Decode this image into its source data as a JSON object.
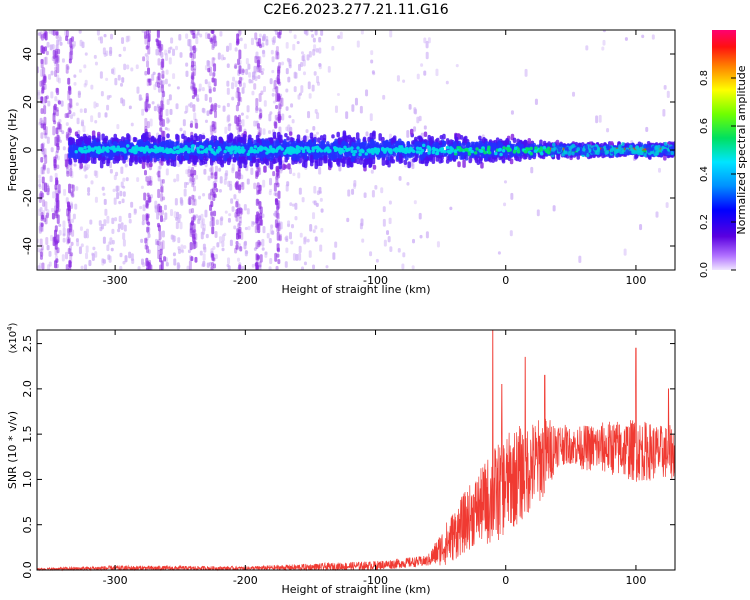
{
  "title": "C2E6.2023.277.21.11.G16",
  "colors": {
    "snr_line": "#f03a32",
    "spectrogram_weak": "#c9a8f5",
    "spectrogram_mid": "#8a2be2",
    "spectrogram_core": "#2233ff",
    "spectrogram_peak": "#ff2020",
    "spectrogram_hot": "#00e070"
  },
  "chart_data": [
    {
      "type": "heatmap",
      "title": "C2E6.2023.277.21.11.G16",
      "xlabel": "Height of straight line (km)",
      "ylabel": "Frequency (Hz)",
      "xlim": [
        -360,
        130
      ],
      "ylim": [
        -50,
        50
      ],
      "xticks": [
        -300,
        -200,
        -100,
        0,
        100
      ],
      "yticks": [
        -40,
        -20,
        0,
        20,
        40
      ],
      "colorbar": {
        "label": "Normalized spectral amplitude",
        "range": [
          0,
          1
        ],
        "ticks": [
          "0.0",
          "0.2",
          "0.4",
          "0.6",
          "0.8"
        ],
        "colormap": "rainbow (purple to red)"
      },
      "trend": {
        "center_frequency_hz": 0,
        "band_halfwidth_hz": [
          [
            -340,
            7
          ],
          [
            -100,
            8
          ],
          [
            0,
            6
          ],
          [
            35,
            3
          ],
          [
            130,
            3
          ]
        ],
        "weak_signal_span_hz": [
          -50,
          50
        ],
        "strong_narrow_band_x_range": [
          35,
          125
        ]
      }
    },
    {
      "type": "line",
      "xlabel": "Height of straight line (km)",
      "ylabel": "SNR (10 * v/v)",
      "multiplier_label": "(x10",
      "multiplier_exp": "4",
      "multiplier_close": ")",
      "xlim": [
        -360,
        130
      ],
      "ylim": [
        0,
        2.65
      ],
      "xticks": [
        -300,
        -200,
        -100,
        0,
        100
      ],
      "yticks": [
        "0.0",
        "0.5",
        "1.0",
        "1.5",
        "2.0",
        "2.5"
      ],
      "envelope": {
        "x": [
          -360,
          -300,
          -200,
          -150,
          -100,
          -60,
          -45,
          -30,
          -20,
          -10,
          0,
          10,
          20,
          30,
          40,
          50,
          60,
          80,
          100,
          120,
          130
        ],
        "mean": [
          0.01,
          0.02,
          0.02,
          0.03,
          0.05,
          0.1,
          0.3,
          0.55,
          0.7,
          0.8,
          0.95,
          1.05,
          1.15,
          1.25,
          1.4,
          1.37,
          1.35,
          1.35,
          1.32,
          1.3,
          1.3
        ],
        "spread": [
          0.01,
          0.03,
          0.02,
          0.04,
          0.05,
          0.06,
          0.25,
          0.35,
          0.4,
          0.55,
          0.55,
          0.55,
          0.5,
          0.45,
          0.25,
          0.2,
          0.25,
          0.3,
          0.35,
          0.3,
          0.3
        ]
      },
      "peaks": [
        [
          -10,
          2.65
        ],
        [
          -3,
          2.05
        ],
        [
          15,
          2.35
        ],
        [
          30,
          2.15
        ],
        [
          100,
          2.45
        ],
        [
          125,
          2.0
        ]
      ]
    }
  ]
}
